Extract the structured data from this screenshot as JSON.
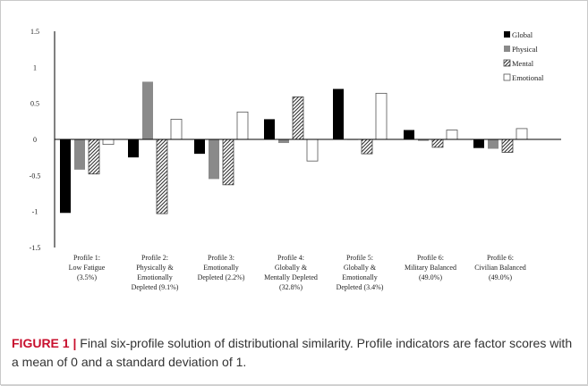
{
  "chart_data": {
    "type": "bar",
    "title": "",
    "xlabel": "",
    "ylabel": "",
    "ylim": [
      -1.5,
      1.5
    ],
    "yticks": [
      "1.5",
      "1",
      "0.5",
      "0",
      "-0.5",
      "-1",
      "-1.5"
    ],
    "grid": false,
    "legend_position": "top-right",
    "categories": [
      [
        "Profile 1:",
        "Low Fatigue",
        "(3.5%)"
      ],
      [
        "Profile 2:",
        "Physically &",
        "Emotionally",
        "Depleted (9.1%)"
      ],
      [
        "Profile 3:",
        "Emotionally",
        "Depleted (2.2%)"
      ],
      [
        "Profile 4:",
        "Globally &",
        "Mentally Depleted",
        "(32.8%)"
      ],
      [
        "Profile 5:",
        "Globally &",
        "Emotionally",
        "Depleted (3.4%)"
      ],
      [
        "Profile 6:",
        "Military Balanced",
        "(49.0%)"
      ],
      [
        "Profile 6:",
        "Civilian Balanced",
        "(49.0%)"
      ]
    ],
    "series": [
      {
        "name": "Global",
        "color": "#000000",
        "pattern": "solid",
        "values": [
          -1.02,
          -0.25,
          -0.2,
          0.28,
          0.7,
          0.13,
          -0.12
        ]
      },
      {
        "name": "Physical",
        "color": "#8a8a8a",
        "pattern": "solid",
        "values": [
          -0.42,
          0.8,
          -0.55,
          -0.05,
          0.0,
          -0.02,
          -0.13
        ]
      },
      {
        "name": "Mental",
        "color": "#555555",
        "pattern": "hatch",
        "values": [
          -0.48,
          -1.03,
          -0.63,
          0.59,
          -0.2,
          -0.11,
          -0.18
        ]
      },
      {
        "name": "Emotional",
        "color": "#ffffff",
        "pattern": "outline",
        "values": [
          -0.07,
          0.28,
          0.38,
          -0.3,
          0.64,
          0.13,
          0.15
        ]
      }
    ]
  },
  "caption": {
    "label": "FIGURE 1 |",
    "text": " Final six-profile solution of distributional similarity. Profile indicators are factor scores with a mean of 0 and a standard deviation of 1."
  }
}
